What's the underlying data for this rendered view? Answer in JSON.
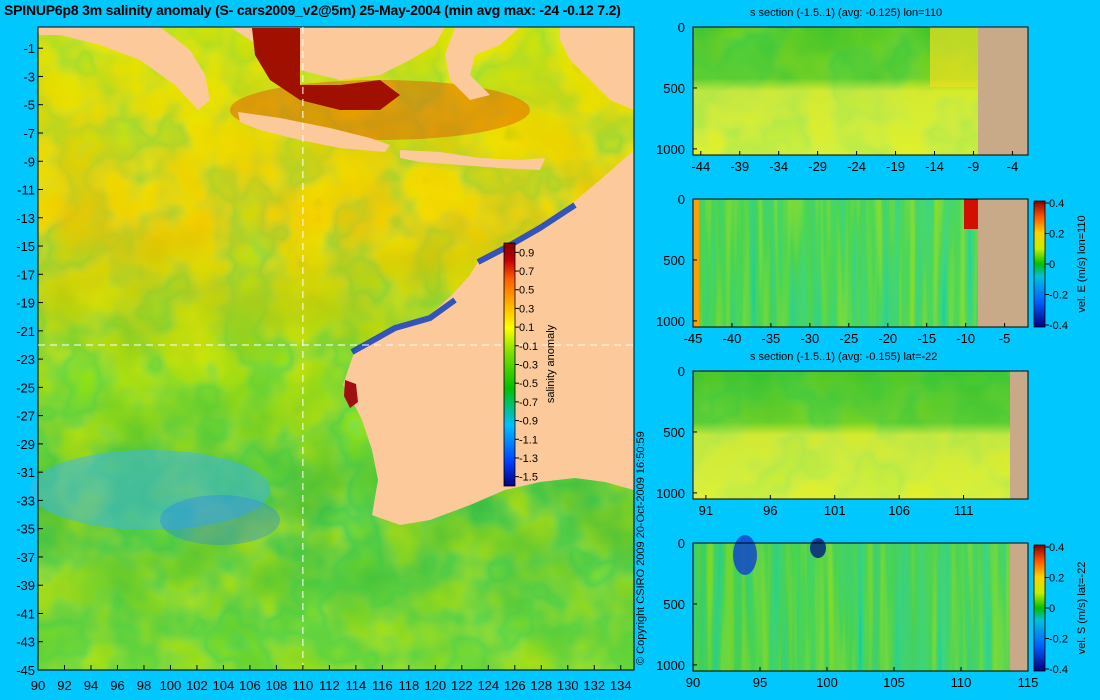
{
  "header": {
    "title": "SPINUP6p8 3m salinity anomaly (S- cars2009_v2@5m) 25-May-2004 (min avg max: -24 -0.12 7.2)"
  },
  "copyright": "© Copyright CSIRO 2009  20-Oct-2009 16:50:59",
  "colors": {
    "background": "#00c8ff",
    "land": "#fcca9a",
    "section_land": "#c8aa88",
    "colormap": [
      "#00007f",
      "#0040ff",
      "#00bfff",
      "#00c000",
      "#7fe000",
      "#ffff00",
      "#ffb000",
      "#ff6000",
      "#c00000",
      "#800000"
    ]
  },
  "chart_data": [
    {
      "id": "map",
      "type": "heatmap",
      "title": "SPINUP6p8 3m salinity anomaly (S- cars2009_v2@5m) 25-May-2004 (min avg max: -24 -0.12 7.2)",
      "x_ticks": [
        90,
        92,
        94,
        96,
        98,
        100,
        102,
        104,
        106,
        108,
        110,
        112,
        114,
        116,
        118,
        120,
        122,
        124,
        126,
        128,
        130,
        132,
        134
      ],
      "y_ticks": [
        -1,
        -3,
        -5,
        -7,
        -9,
        -11,
        -13,
        -15,
        -17,
        -19,
        -21,
        -23,
        -25,
        -27,
        -29,
        -31,
        -33,
        -35,
        -37,
        -39,
        -41,
        -43,
        -45
      ],
      "xlim": [
        90,
        135
      ],
      "ylim": [
        -45,
        0.5
      ],
      "section_lon": 110,
      "section_lat": -22,
      "colorbar": {
        "label": "salinity anomaly",
        "ticks": [
          0.9,
          0.7,
          0.5,
          0.3,
          0.1,
          -0.1,
          -0.3,
          -0.5,
          -0.7,
          -0.9,
          -1.1,
          -1.3,
          -1.5
        ],
        "range": [
          -1.6,
          1.0
        ]
      }
    },
    {
      "id": "panel1",
      "type": "heatmap",
      "title": "s section (-1.5..1) (avg: -0.125) lon=110",
      "x_ticks": [
        -44,
        -39,
        -34,
        -29,
        -24,
        -19,
        -14,
        -9,
        -4
      ],
      "xlim": [
        -45,
        -2
      ],
      "y_ticks": [
        0,
        500,
        1000
      ],
      "ylim": [
        0,
        1050
      ],
      "land_from": -8
    },
    {
      "id": "panel2",
      "type": "heatmap",
      "title": "",
      "x_ticks": [
        -45,
        -40,
        -35,
        -30,
        -25,
        -20,
        -15,
        -10,
        -5
      ],
      "xlim": [
        -45,
        -2
      ],
      "y_ticks": [
        0,
        500,
        1000
      ],
      "ylim": [
        0,
        1050
      ],
      "land_from": -8,
      "colorbar": {
        "label": "vel. E (m/s) lon=110",
        "ticks": [
          0.4,
          0.2,
          0,
          -0.2,
          -0.4
        ]
      }
    },
    {
      "id": "panel3",
      "type": "heatmap",
      "title": "s section (-1.5..1) (avg: -0.155) lat=-22",
      "x_ticks": [
        91,
        96,
        101,
        106,
        111
      ],
      "xlim": [
        90,
        116
      ],
      "y_ticks": [
        0,
        500,
        1000
      ],
      "ylim": [
        0,
        1050
      ],
      "land_from": 114
    },
    {
      "id": "panel4",
      "type": "heatmap",
      "title": "",
      "x_ticks": [
        90,
        95,
        100,
        105,
        110,
        115
      ],
      "xlim": [
        90,
        115
      ],
      "y_ticks": [
        0,
        500,
        1000
      ],
      "ylim": [
        0,
        1050
      ],
      "land_from": 114,
      "colorbar": {
        "label": "vel. S (m/s) lat=-22",
        "ticks": [
          0.4,
          0.2,
          0,
          -0.2,
          -0.4
        ]
      }
    }
  ]
}
